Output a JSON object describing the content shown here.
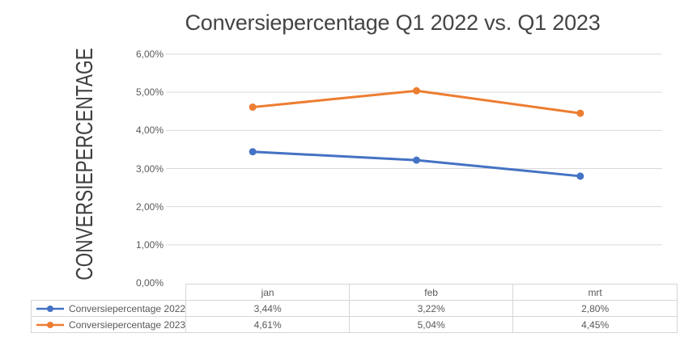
{
  "chart_data": {
    "type": "line",
    "title": "Conversiepercentage Q1 2022 vs. Q1 2023",
    "ylabel": "CONVERSIEPERCENTAGE",
    "xlabel": "",
    "categories": [
      "jan",
      "feb",
      "mrt"
    ],
    "series": [
      {
        "name": "Conversiepercentage 2022",
        "values": [
          3.44,
          3.22,
          2.8
        ],
        "display_values": [
          "3,44%",
          "3,22%",
          "2,80%"
        ],
        "color": "#4472C4",
        "marker": "circle"
      },
      {
        "name": "Conversiepercentage 2023",
        "values": [
          4.61,
          5.04,
          4.45
        ],
        "display_values": [
          "4,61%",
          "5,04%",
          "4,45%"
        ],
        "color": "#ED7D31",
        "marker": "circle"
      }
    ],
    "ylim": [
      0,
      6
    ],
    "yticks": [
      {
        "value": 0,
        "label": "0,00%"
      },
      {
        "value": 1,
        "label": "1,00%"
      },
      {
        "value": 2,
        "label": "2,00%"
      },
      {
        "value": 3,
        "label": "3,00%"
      },
      {
        "value": 4,
        "label": "4,00%"
      },
      {
        "value": 5,
        "label": "5,00%"
      },
      {
        "value": 6,
        "label": "6,00%"
      }
    ],
    "grid": true,
    "legend_position": "data-table-bottom"
  },
  "colors": {
    "background": "#FFFFFF",
    "gridline": "#D9D9D9",
    "table_border": "#D6D6D6",
    "tick_text": "#595959",
    "table_text": "#595959",
    "title_text": "#444444",
    "axis_title_text": "#3F3F3F"
  }
}
